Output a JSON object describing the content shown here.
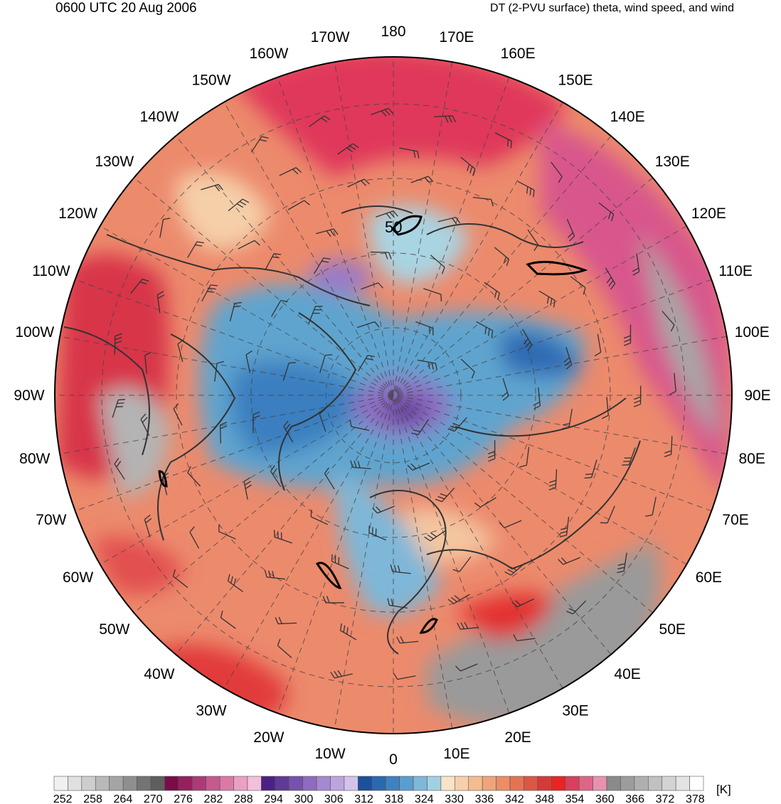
{
  "header": {
    "valid_time": "0600 UTC 20 Aug 2006",
    "product": "DT (2-PVU surface) theta, wind speed, and wind"
  },
  "map": {
    "projection": "north polar stereographic",
    "contour_label": "50",
    "longitude_labels": [
      {
        "lon": 180,
        "text": "180"
      },
      {
        "lon": 170,
        "text": "170E"
      },
      {
        "lon": 160,
        "text": "160E"
      },
      {
        "lon": 150,
        "text": "150E"
      },
      {
        "lon": 140,
        "text": "140E"
      },
      {
        "lon": 130,
        "text": "130E"
      },
      {
        "lon": 120,
        "text": "120E"
      },
      {
        "lon": 110,
        "text": "110E"
      },
      {
        "lon": 100,
        "text": "100E"
      },
      {
        "lon": 90,
        "text": "90E"
      },
      {
        "lon": 80,
        "text": "80E"
      },
      {
        "lon": 70,
        "text": "70E"
      },
      {
        "lon": 60,
        "text": "60E"
      },
      {
        "lon": 50,
        "text": "50E"
      },
      {
        "lon": 40,
        "text": "40E"
      },
      {
        "lon": 30,
        "text": "30E"
      },
      {
        "lon": 20,
        "text": "20E"
      },
      {
        "lon": 10,
        "text": "10E"
      },
      {
        "lon": 0,
        "text": "0"
      },
      {
        "lon": -10,
        "text": "10W"
      },
      {
        "lon": -20,
        "text": "20W"
      },
      {
        "lon": -30,
        "text": "30W"
      },
      {
        "lon": -40,
        "text": "40W"
      },
      {
        "lon": -50,
        "text": "50W"
      },
      {
        "lon": -60,
        "text": "60W"
      },
      {
        "lon": -70,
        "text": "70W"
      },
      {
        "lon": -80,
        "text": "80W"
      },
      {
        "lon": -90,
        "text": "90W"
      },
      {
        "lon": -100,
        "text": "100W"
      },
      {
        "lon": -110,
        "text": "110W"
      },
      {
        "lon": -120,
        "text": "120W"
      },
      {
        "lon": -130,
        "text": "130W"
      },
      {
        "lon": -140,
        "text": "140W"
      },
      {
        "lon": -150,
        "text": "150W"
      },
      {
        "lon": -160,
        "text": "160W"
      },
      {
        "lon": -170,
        "text": "170W"
      }
    ]
  },
  "colorbar": {
    "unit": "[K]",
    "tick_labels": [
      "252",
      "258",
      "264",
      "270",
      "276",
      "282",
      "288",
      "294",
      "300",
      "306",
      "312",
      "318",
      "324",
      "330",
      "336",
      "342",
      "348",
      "354",
      "360",
      "366",
      "372",
      "378"
    ],
    "colors": [
      "#f0f0f0",
      "#e0e0e0",
      "#cdcdcd",
      "#b9b9b9",
      "#a5a5a5",
      "#8f8f8f",
      "#747474",
      "#5e5e5e",
      "#7a0c4a",
      "#94205e",
      "#ad3a76",
      "#c55a8d",
      "#d97aa6",
      "#eaa0c3",
      "#f2c0da",
      "#4b2281",
      "#5f3a96",
      "#7652ab",
      "#8d6cbe",
      "#a588cf",
      "#bda4de",
      "#d3c3ea",
      "#1c4f9c",
      "#2c68b0",
      "#3f82c1",
      "#5b9dcd",
      "#7eb7d8",
      "#a2d0e2",
      "#f7e3c8",
      "#f6d0ac",
      "#f3bb92",
      "#efa57c",
      "#ea8d68",
      "#e47356",
      "#dd5645",
      "#d63a38",
      "#e82424",
      "#d8405d",
      "#e06488",
      "#e891ad",
      "#8a8a8a",
      "#9c9c9c",
      "#afafaf",
      "#c1c1c1",
      "#d3d3d3",
      "#e3e3e3",
      "#ffffff"
    ]
  }
}
